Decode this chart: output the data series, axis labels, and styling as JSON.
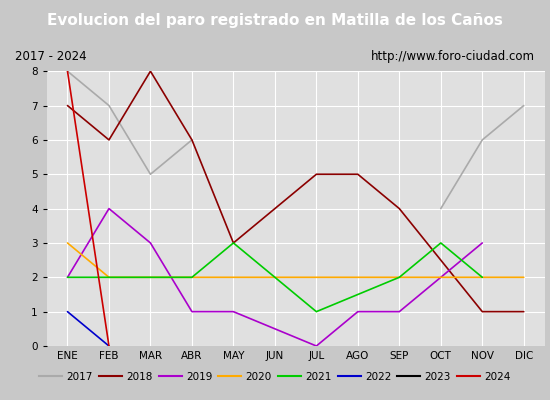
{
  "title": "Evolucion del paro registrado en Matilla de los Caños",
  "subtitle_left": "2017 - 2024",
  "subtitle_right": "http://www.foro-ciudad.com",
  "months": [
    "ENE",
    "FEB",
    "MAR",
    "ABR",
    "MAY",
    "JUN",
    "JUL",
    "AGO",
    "SEP",
    "OCT",
    "NOV",
    "DIC"
  ],
  "ylim": [
    0.0,
    8.0
  ],
  "yticks": [
    0.0,
    1.0,
    2.0,
    3.0,
    4.0,
    5.0,
    6.0,
    7.0,
    8.0
  ],
  "series_data": {
    "2017": {
      "color": "#aaaaaa",
      "x": [
        0,
        1,
        2,
        3,
        4,
        5,
        9,
        10,
        11
      ],
      "y": [
        8.0,
        7.0,
        5.0,
        6.0,
        null,
        null,
        4.0,
        6.0,
        7.0
      ]
    },
    "2018": {
      "color": "#8b0000",
      "x": [
        0,
        1,
        2,
        3,
        4,
        6,
        7,
        8,
        10,
        11
      ],
      "y": [
        7.0,
        6.0,
        8.0,
        6.0,
        3.0,
        5.0,
        5.0,
        4.0,
        1.0,
        1.0
      ]
    },
    "2019": {
      "color": "#aa00cc",
      "x": [
        0,
        1,
        2,
        3,
        4,
        6,
        7,
        8,
        10
      ],
      "y": [
        2.0,
        4.0,
        3.0,
        1.0,
        1.0,
        0.0,
        1.0,
        1.0,
        3.0
      ]
    },
    "2020": {
      "color": "#ffaa00",
      "x": [
        0,
        1,
        2,
        3,
        4,
        5,
        6,
        7,
        8,
        9,
        10,
        11
      ],
      "y": [
        3.0,
        2.0,
        2.0,
        2.0,
        2.0,
        2.0,
        2.0,
        2.0,
        2.0,
        2.0,
        2.0,
        2.0
      ]
    },
    "2021": {
      "color": "#00cc00",
      "x": [
        0,
        3,
        4,
        5,
        6,
        8,
        9,
        10
      ],
      "y": [
        2.0,
        2.0,
        3.0,
        2.0,
        1.0,
        2.0,
        3.0,
        2.0
      ]
    },
    "2022": {
      "color": "#0000cc",
      "x": [
        0,
        1
      ],
      "y": [
        1.0,
        0.0
      ]
    },
    "2023": {
      "color": "#000000",
      "x": [],
      "y": []
    },
    "2024": {
      "color": "#cc0000",
      "x": [
        0,
        1
      ],
      "y": [
        8.0,
        0.0
      ]
    }
  },
  "fig_bg_color": "#c8c8c8",
  "title_bg_color": "#4488cc",
  "title_color": "#ffffff",
  "header_bg_color": "#e8e8e8",
  "plot_bg_color": "#e0e0e0",
  "grid_color": "#ffffff",
  "legend_bg_color": "#e8e8e8",
  "legend_border_color": "#aaaaaa",
  "outer_border_color": "#888888"
}
